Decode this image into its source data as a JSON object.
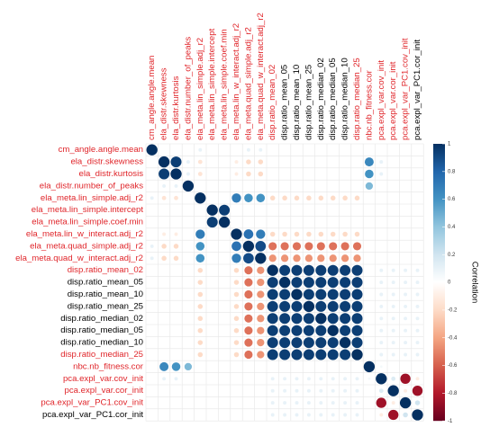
{
  "chart_data": {
    "type": "corrplot",
    "categories": [
      "cm_angle.angle.mean",
      "ela_distr.skewness",
      "ela_distr.kurtosis",
      "ela_distr.number_of_peaks",
      "ela_meta.lin_simple.adj_r2",
      "ela_meta.lin_simple.intercept",
      "ela_meta.lin_simple.coef.min",
      "ela_meta.lin_w_interact.adj_r2",
      "ela_meta.quad_simple.adj_r2",
      "ela_meta.quad_w_interact.adj_r2",
      "disp.ratio_mean_02",
      "disp.ratio_mean_05",
      "disp.ratio_mean_10",
      "disp.ratio_mean_25",
      "disp.ratio_median_02",
      "disp.ratio_median_05",
      "disp.ratio_median_10",
      "disp.ratio_median_25",
      "nbc.nb_fitness.cor",
      "pca.expl_var.cov_init",
      "pca.expl_var.cor_init",
      "pca.expl_var_PC1.cov_init",
      "pca.expl_var_PC1.cor_init"
    ],
    "label_colors": [
      "#e0262b",
      "#e0262b",
      "#e0262b",
      "#e0262b",
      "#e0262b",
      "#e0262b",
      "#e0262b",
      "#e0262b",
      "#e0262b",
      "#e0262b",
      "#e0262b",
      "#000000",
      "#000000",
      "#000000",
      "#000000",
      "#000000",
      "#000000",
      "#e0262b",
      "#e0262b",
      "#e0262b",
      "#e0262b",
      "#e0262b",
      "#000000"
    ],
    "values": [
      [
        1,
        0,
        0,
        0,
        0.1,
        0,
        0,
        0,
        0.1,
        0.1,
        0,
        0,
        0,
        0,
        0,
        0,
        0,
        0,
        0,
        0,
        0,
        0,
        0
      ],
      [
        0,
        1,
        0.95,
        0.1,
        -0.15,
        0,
        0,
        -0.1,
        -0.2,
        -0.2,
        0,
        0,
        0,
        0,
        0,
        0,
        0,
        0,
        0.65,
        0.1,
        0,
        0,
        0
      ],
      [
        0,
        0.95,
        1,
        0.1,
        -0.15,
        0,
        0,
        -0.1,
        -0.2,
        -0.2,
        0,
        0,
        0,
        0,
        0,
        0,
        0,
        0,
        0.6,
        0.1,
        0,
        0,
        0
      ],
      [
        0,
        0.1,
        0.1,
        1,
        0,
        0,
        0,
        0,
        0,
        0,
        0,
        0,
        0,
        0,
        0,
        0,
        0,
        0,
        0.45,
        0,
        0,
        0,
        0
      ],
      [
        0.1,
        -0.15,
        -0.15,
        0,
        1,
        0,
        0,
        0.7,
        0.6,
        0.6,
        -0.2,
        -0.2,
        -0.2,
        -0.2,
        -0.2,
        -0.2,
        -0.2,
        -0.2,
        0,
        0,
        0,
        0,
        0
      ],
      [
        0,
        0,
        0,
        0,
        0,
        1,
        0.95,
        0,
        0,
        0,
        0,
        0,
        0,
        0,
        0,
        0,
        0,
        0,
        0,
        0,
        0,
        0,
        0
      ],
      [
        0,
        0,
        0,
        0,
        0,
        0.95,
        1,
        0,
        0,
        0,
        0,
        0,
        0,
        0,
        0,
        0,
        0,
        0,
        0,
        0,
        0,
        0,
        0
      ],
      [
        0,
        -0.1,
        -0.1,
        0,
        0.7,
        0,
        0,
        1,
        0.75,
        0.7,
        -0.2,
        -0.2,
        -0.2,
        -0.2,
        -0.2,
        -0.2,
        -0.2,
        -0.2,
        0,
        0,
        0,
        0,
        0
      ],
      [
        0.1,
        -0.2,
        -0.2,
        0,
        0.6,
        0,
        0,
        0.75,
        1,
        0.9,
        -0.55,
        -0.55,
        -0.55,
        -0.55,
        -0.55,
        -0.55,
        -0.55,
        -0.55,
        0,
        0,
        0,
        0,
        0
      ],
      [
        0.1,
        -0.2,
        -0.2,
        0,
        0.6,
        0,
        0,
        0.7,
        0.9,
        1,
        -0.45,
        -0.45,
        -0.45,
        -0.45,
        -0.45,
        -0.45,
        -0.45,
        -0.45,
        0,
        0,
        0,
        0,
        0
      ],
      [
        0,
        0,
        0,
        0,
        -0.2,
        0,
        0,
        -0.2,
        -0.55,
        -0.45,
        1,
        0.95,
        0.95,
        0.95,
        0.95,
        0.95,
        0.95,
        0.95,
        0,
        0.1,
        0.1,
        0.1,
        0.1
      ],
      [
        0,
        0,
        0,
        0,
        -0.2,
        0,
        0,
        -0.2,
        -0.55,
        -0.45,
        0.95,
        1,
        0.95,
        0.95,
        0.95,
        0.95,
        0.95,
        0.95,
        0,
        0.1,
        0.1,
        0.1,
        0.1
      ],
      [
        0,
        0,
        0,
        0,
        -0.2,
        0,
        0,
        -0.2,
        -0.55,
        -0.45,
        0.95,
        0.95,
        1,
        0.95,
        0.95,
        0.95,
        0.95,
        0.95,
        0,
        0.1,
        0.1,
        0.1,
        0.1
      ],
      [
        0,
        0,
        0,
        0,
        -0.2,
        0,
        0,
        -0.2,
        -0.55,
        -0.45,
        0.95,
        0.95,
        0.95,
        1,
        0.95,
        0.95,
        0.95,
        0.95,
        0,
        0.1,
        0.1,
        0.1,
        0.1
      ],
      [
        0,
        0,
        0,
        0,
        -0.2,
        0,
        0,
        -0.2,
        -0.55,
        -0.45,
        0.95,
        0.95,
        0.95,
        0.95,
        1,
        0.95,
        0.95,
        0.95,
        0,
        0.1,
        0.1,
        0.1,
        0.1
      ],
      [
        0,
        0,
        0,
        0,
        -0.2,
        0,
        0,
        -0.2,
        -0.55,
        -0.45,
        0.95,
        0.95,
        0.95,
        0.95,
        0.95,
        1,
        0.95,
        0.95,
        0,
        0.1,
        0.1,
        0.1,
        0.1
      ],
      [
        0,
        0,
        0,
        0,
        -0.2,
        0,
        0,
        -0.2,
        -0.55,
        -0.45,
        0.95,
        0.95,
        0.95,
        0.95,
        0.95,
        0.95,
        1,
        0.95,
        0,
        0.1,
        0.1,
        0.1,
        0.1
      ],
      [
        0,
        0,
        0,
        0,
        -0.2,
        0,
        0,
        -0.2,
        -0.55,
        -0.45,
        0.95,
        0.95,
        0.95,
        0.95,
        0.95,
        0.95,
        0.95,
        1,
        0,
        0.1,
        0.1,
        0.1,
        0.1
      ],
      [
        0,
        0.65,
        0.6,
        0.45,
        0,
        0,
        0,
        0,
        0,
        0,
        0,
        0,
        0,
        0,
        0,
        0,
        0,
        0,
        1,
        0.05,
        0,
        0,
        0
      ],
      [
        0,
        0.1,
        0.1,
        0,
        0,
        0,
        0,
        0,
        0,
        0,
        0.1,
        0.1,
        0.1,
        0.1,
        0.1,
        0.1,
        0.1,
        0.1,
        0.05,
        1,
        0.15,
        -0.85,
        -0.1
      ],
      [
        0,
        0,
        0,
        0,
        0,
        0,
        0,
        0,
        0,
        0,
        0.1,
        0.1,
        0.1,
        0.1,
        0.1,
        0.1,
        0.1,
        0.1,
        0,
        0.15,
        1,
        -0.1,
        -0.85
      ],
      [
        0,
        0,
        0,
        0,
        0,
        0,
        0,
        0,
        0,
        0,
        0.1,
        0.1,
        0.1,
        0.1,
        0.1,
        0.1,
        0.1,
        0.1,
        0,
        -0.85,
        -0.1,
        1,
        0.2
      ],
      [
        0,
        0,
        0,
        0,
        0,
        0,
        0,
        0,
        0,
        0,
        0.1,
        0.1,
        0.1,
        0.1,
        0.1,
        0.1,
        0.1,
        0.1,
        0,
        -0.1,
        -0.85,
        0.2,
        1
      ]
    ],
    "clim": [
      -1,
      1
    ],
    "colorbar_ticks": [
      1,
      0.8,
      0.6,
      0.4,
      0.2,
      0,
      -0.2,
      -0.4,
      -0.6,
      -0.8,
      -1
    ],
    "palette": [
      "#67001F",
      "#B2182B",
      "#D6604D",
      "#F4A582",
      "#FDDBC7",
      "#FFFFFF",
      "#D1E5F0",
      "#92C5DE",
      "#4393C3",
      "#2166AC",
      "#053061"
    ],
    "legend_title": "Correlation"
  }
}
